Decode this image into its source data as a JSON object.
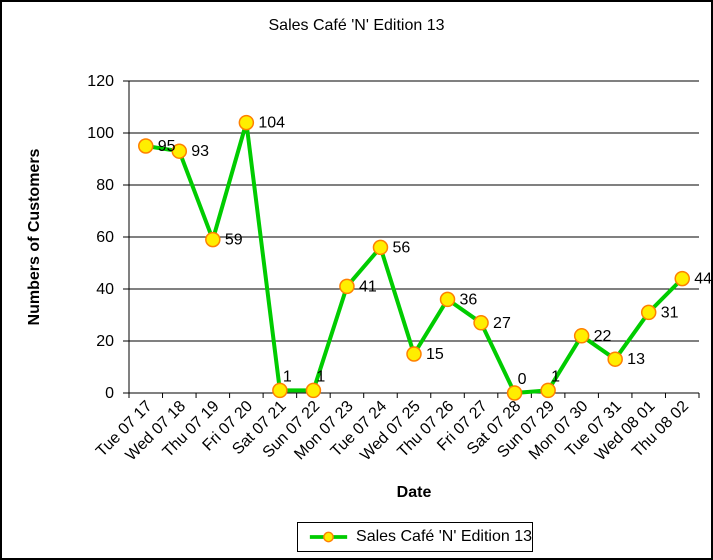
{
  "chart_data": {
    "type": "line",
    "title": "Sales Café 'N' Edition 13",
    "xlabel": "Date",
    "ylabel": "Numbers of Customers",
    "ylim": [
      0,
      120
    ],
    "ytick_step": 20,
    "grid": true,
    "legend_position": "bottom-center",
    "categories": [
      "Tue 07 17",
      "Wed 07 18",
      "Thu 07 19",
      "Fri 07 20",
      "Sat 07 21",
      "Sun 07 22",
      "Mon 07 23",
      "Tue 07 24",
      "Wed 07 25",
      "Thu 07 26",
      "Fri 07 27",
      "Sat 07 28",
      "Sun 07 29",
      "Mon 07 30",
      "Tue 07 31",
      "Wed 08 01",
      "Thu 08 02"
    ],
    "series": [
      {
        "name": "Sales Café 'N' Edition 13",
        "values": [
          95,
          93,
          59,
          104,
          1,
          1,
          41,
          56,
          15,
          36,
          27,
          0,
          1,
          22,
          13,
          31,
          44
        ]
      }
    ],
    "colors": {
      "line": "#00CC00",
      "marker_fill": "#FFEE00",
      "marker_border": "#FF8000",
      "grid": "#000000",
      "axis": "#000000",
      "text": "#000000",
      "background": "#FFFFFF"
    }
  }
}
